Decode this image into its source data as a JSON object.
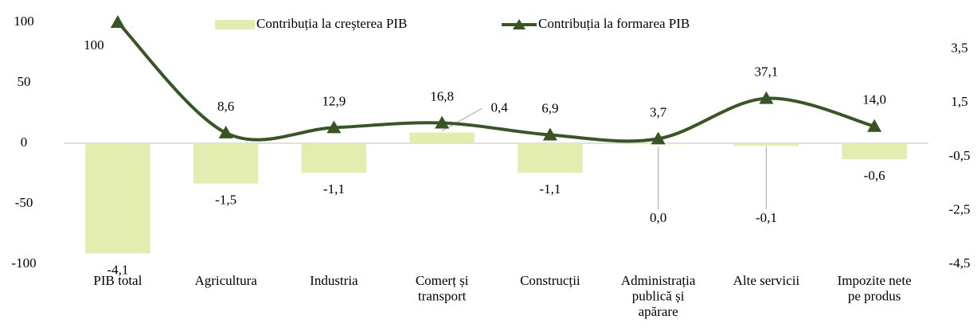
{
  "chart_data": {
    "type": "bar+line",
    "categories": [
      "PIB total",
      "Agricultura",
      "Industria",
      "Comerț și\ntransport",
      "Construcții",
      "Administrația\npublică și\napărare",
      "Alte servicii",
      "Impozite nete\npe produs"
    ],
    "series": [
      {
        "name": "Contribuția la creșterea PIB",
        "type": "bar",
        "axis": "y2",
        "color": "#e3edb0",
        "values": [
          -4.1,
          -1.5,
          -1.1,
          0.4,
          -1.1,
          0.0,
          -0.1,
          -0.6
        ],
        "value_labels": [
          "-4,1",
          "-1,5",
          "-1,1",
          "0,4",
          "-1,1",
          "0,0",
          "-0,1",
          "-0,6"
        ]
      },
      {
        "name": "Contribuția la formarea PIB",
        "type": "line",
        "axis": "y",
        "color": "#375623",
        "values": [
          100,
          8.6,
          12.9,
          16.8,
          6.9,
          3.7,
          37.1,
          14.0
        ],
        "value_labels": [
          "100",
          "8,6",
          "12,9",
          "16,8",
          "6,9",
          "3,7",
          "37,1",
          "14,0"
        ]
      }
    ],
    "ylim": [
      -100,
      100
    ],
    "yticks": [
      -100,
      -50,
      0,
      50,
      100
    ],
    "y2lim": [
      -4.5,
      4.5
    ],
    "y2ticks": [
      {
        "value": -4.5,
        "label": "-4,5"
      },
      {
        "value": -2.5,
        "label": "-2,5"
      },
      {
        "value": -0.5,
        "label": "-0,5"
      },
      {
        "value": 1.5,
        "label": "1,5"
      },
      {
        "value": 3.5,
        "label": "3,5"
      }
    ],
    "legend": "top"
  }
}
